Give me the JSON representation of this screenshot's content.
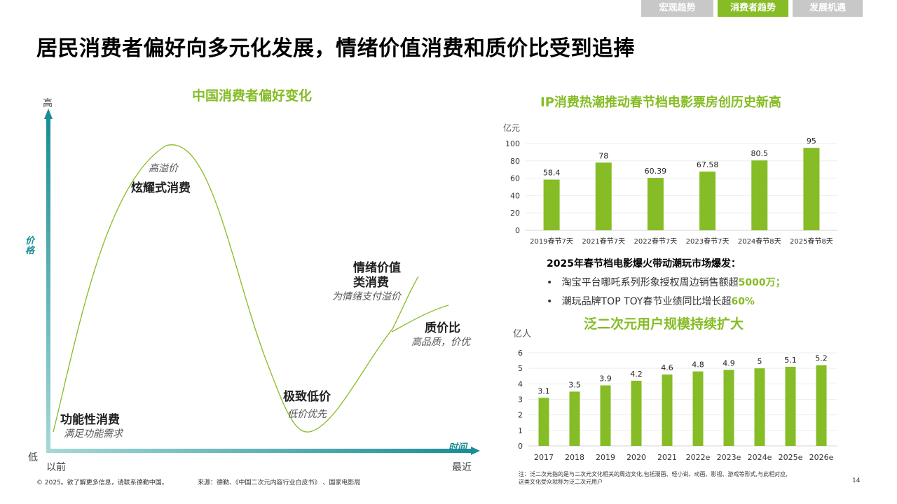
{
  "tabs": [
    "宏观趋势",
    "消费者趋势",
    "发展机遇"
  ],
  "page_title": "居民消费者偏好向多元化发展，情绪价值消费和质价比受到追捧",
  "preference_chart": {
    "title": "中国消费者偏好变化",
    "y_high": "高",
    "y_low": "低",
    "y_axis_label": "价格",
    "x_axis_label": "时间",
    "x_start": "以前",
    "x_end": "最近",
    "stages": [
      {
        "name": "功能性消费",
        "desc": "满足功能需求"
      },
      {
        "name": "炫耀式消费",
        "desc": "高溢价"
      },
      {
        "name": "极致低价",
        "desc": "低价优先"
      },
      {
        "name_line1": "情绪价值",
        "name_line2": "类消费",
        "desc": "为情绪支付溢价"
      },
      {
        "name": "质价比",
        "desc": "高品质，价优"
      }
    ]
  },
  "chart_data": [
    {
      "type": "bar",
      "title": "IP消费热潮推动春节档电影票房创历史新高",
      "ylabel": "亿元",
      "categories": [
        "2019春节7天",
        "2021春节7天",
        "2022春节7天",
        "2023春节7天",
        "2024春节8天",
        "2025春节8天"
      ],
      "values": [
        58.4,
        78,
        60.39,
        67.58,
        80.5,
        95
      ],
      "value_labels": [
        "58.4",
        "78",
        "60.39",
        "67.58",
        "80.5",
        "95"
      ],
      "ylim": [
        0,
        100
      ],
      "yticks": [
        0,
        20,
        40,
        60,
        80,
        100
      ],
      "color": "#86bc25"
    },
    {
      "type": "bar",
      "title": "泛二次元用户规模持续扩大",
      "ylabel": "亿人",
      "categories": [
        "2017",
        "2018",
        "2019",
        "2020",
        "2021",
        "2022e",
        "2023e",
        "2024e",
        "2025e",
        "2026e"
      ],
      "values": [
        3.1,
        3.5,
        3.9,
        4.2,
        4.6,
        4.8,
        4.9,
        5,
        5.1,
        5.2
      ],
      "value_labels": [
        "3.1",
        "3.5",
        "3.9",
        "4.2",
        "4.6",
        "4.8",
        "4.9",
        "5",
        "5.1",
        "5.2"
      ],
      "ylim": [
        0,
        6
      ],
      "yticks": [
        0,
        1,
        2,
        3,
        4,
        5,
        6
      ],
      "color": "#86bc25"
    }
  ],
  "spring_festival": {
    "heading": "2025年春节档电影爆火带动潮玩市场爆发：",
    "bullets": [
      {
        "text": "淘宝平台哪吒系列形象授权周边销售额超",
        "highlight": "5000万；"
      },
      {
        "text": "潮玩品牌TOP TOY春节业绩同比增长超",
        "highlight": "60%"
      }
    ],
    "bullet_symbol": "•"
  },
  "footer": {
    "copyright": "© 2025。欲了解更多信息，请联系德勤中国。",
    "source": "来源：德勤、《中国二次元内容行业白皮书》 、国家电影局",
    "note_line1": "注：泛二次元指的是与二次元文化相关的周边文化,包括漫画、轻小说、动画、影视、游戏等形式,与此相对应,",
    "note_line2": "这类文化受众就称为泛二次元用户",
    "page_number": "14"
  }
}
